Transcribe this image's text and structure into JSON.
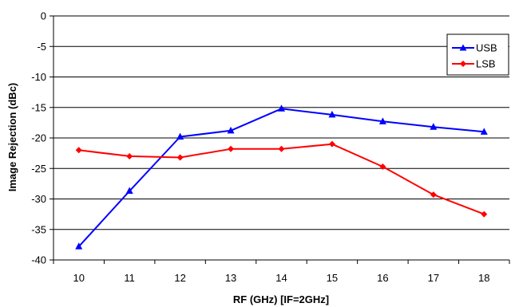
{
  "chart_data": {
    "type": "line",
    "title": "",
    "xlabel": "RF (GHz) [IF=2GHz]",
    "ylabel": "Image Rejection (dBc)",
    "categories": [
      "10",
      "11",
      "12",
      "13",
      "14",
      "15",
      "16",
      "17",
      "18"
    ],
    "ylim": [
      -40,
      0
    ],
    "yticks": [
      "0",
      "-5",
      "-10",
      "-15",
      "-20",
      "-25",
      "-30",
      "-35",
      "-40"
    ],
    "grid": "horizontal",
    "legend_position": "top-right",
    "series": [
      {
        "name": "USB",
        "color": "#0000FF",
        "marker": "triangle",
        "values": [
          -37.8,
          -28.7,
          -19.8,
          -18.8,
          -15.2,
          -16.2,
          -17.3,
          -18.2,
          -19.0
        ]
      },
      {
        "name": "LSB",
        "color": "#FF0000",
        "marker": "diamond",
        "values": [
          -22.0,
          -23.0,
          -23.2,
          -21.8,
          -21.8,
          -21.0,
          -24.7,
          -29.3,
          -32.5
        ]
      }
    ]
  }
}
